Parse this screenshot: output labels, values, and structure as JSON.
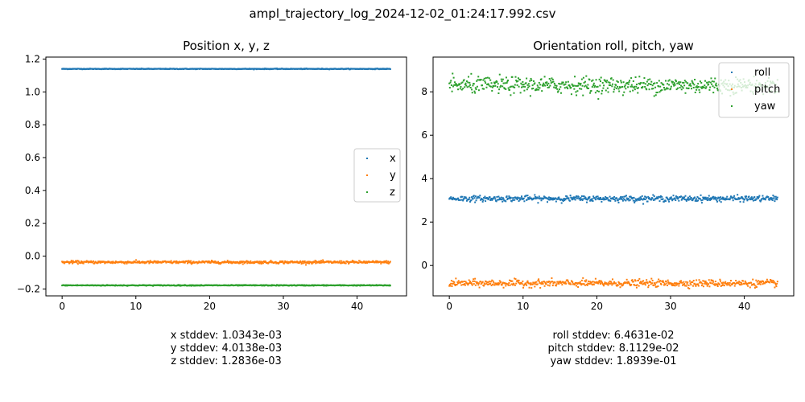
{
  "figure_title": "ampl_trajectory_log_2024-12-02_01:24:17.992.csv",
  "colors": {
    "blue": "#1f77b4",
    "orange": "#ff7f0e",
    "green": "#2ca02c"
  },
  "chart_data": [
    {
      "type": "scatter",
      "title": "Position x, y, z",
      "xlabel": "",
      "ylabel": "",
      "xlim": [
        -2.2,
        46.7
      ],
      "ylim": [
        -0.242,
        1.212
      ],
      "xticks": [
        "0",
        "10",
        "20",
        "30",
        "40"
      ],
      "yticks": [
        "−0.2",
        "0.0",
        "0.2",
        "0.4",
        "0.6",
        "0.8",
        "1.0",
        "1.2"
      ],
      "legend_position": "center-right",
      "grid": false,
      "series": [
        {
          "name": "x",
          "color": "#1f77b4",
          "x_range": [
            0,
            44.5
          ],
          "mean": 1.14,
          "stddev": 0.0010343
        },
        {
          "name": "y",
          "color": "#ff7f0e",
          "x_range": [
            0,
            44.5
          ],
          "mean": -0.037,
          "stddev": 0.0040138
        },
        {
          "name": "z",
          "color": "#2ca02c",
          "x_range": [
            0,
            44.5
          ],
          "mean": -0.178,
          "stddev": 0.0012836
        }
      ]
    },
    {
      "type": "scatter",
      "title": "Orientation roll, pitch, yaw",
      "xlabel": "",
      "ylabel": "",
      "xlim": [
        -2.2,
        46.7
      ],
      "ylim": [
        -1.4,
        9.6
      ],
      "xticks": [
        "0",
        "10",
        "20",
        "30",
        "40"
      ],
      "yticks": [
        "0",
        "2",
        "4",
        "6",
        "8"
      ],
      "legend_position": "top-right",
      "grid": false,
      "series": [
        {
          "name": "roll",
          "color": "#1f77b4",
          "x_range": [
            0,
            44.5
          ],
          "mean": 3.08,
          "stddev": 0.064631
        },
        {
          "name": "pitch",
          "color": "#ff7f0e",
          "x_range": [
            0,
            44.5
          ],
          "mean": -0.82,
          "stddev": 0.081129
        },
        {
          "name": "yaw",
          "color": "#2ca02c",
          "x_range": [
            0,
            44.5
          ],
          "mean": 8.3,
          "stddev": 0.18939
        }
      ]
    }
  ],
  "stats_left": [
    "x stddev: 1.0343e-03",
    "y stddev: 4.0138e-03",
    "z stddev: 1.2836e-03"
  ],
  "stats_right": [
    "roll stddev: 6.4631e-02",
    "pitch stddev: 8.1129e-02",
    "yaw stddev: 1.8939e-01"
  ]
}
